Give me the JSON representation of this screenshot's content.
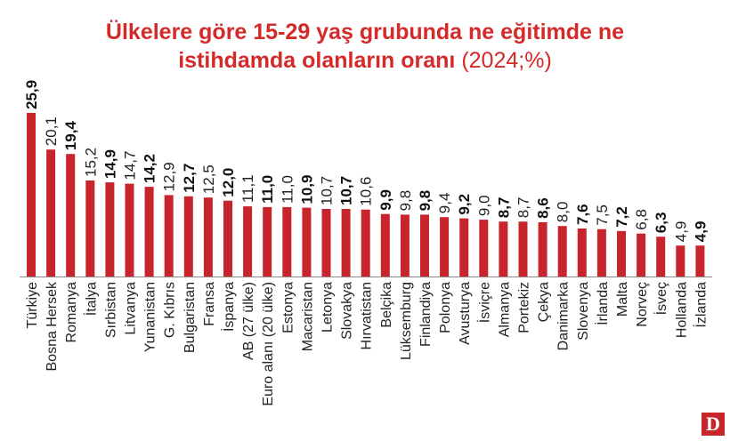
{
  "header": {
    "title_line1": "Ülkelere göre 15-29 yaş grubunda ne eğitimde ne",
    "title_line2": "istihdamda olanların oranı",
    "subtitle": "(2024;%)"
  },
  "logo": {
    "text": "D"
  },
  "colors": {
    "bar": "#c8242b",
    "title": "#d42a2a",
    "logo_bg": "#c7262b"
  },
  "chart_data": {
    "type": "bar",
    "categories": [
      "Türkiye",
      "Bosna Hersek",
      "Romanya",
      "İtalya",
      "Sırbistan",
      "Litvanya",
      "Yunanistan",
      "G. Kıbrıs",
      "Bulgaristan",
      "Fransa",
      "İspanya",
      "AB (27 ülke)",
      "Euro alanı (20 ülke)",
      "Estonya",
      "Macaristan",
      "Letonya",
      "Slovakya",
      "Hırvatistan",
      "Belçika",
      "Lüksemburg",
      "Finlandiya",
      "Polonya",
      "Avusturya",
      "İsviçre",
      "Almanya",
      "Portekiz",
      "Çekya",
      "Danimarka",
      "Slovenya",
      "İrlanda",
      "Malta",
      "Norveç",
      "İsveç",
      "Hollanda",
      "İzlanda"
    ],
    "values": [
      25.9,
      20.1,
      19.4,
      15.2,
      14.9,
      14.7,
      14.2,
      12.9,
      12.7,
      12.5,
      12.0,
      11.1,
      11.0,
      11.0,
      10.9,
      10.7,
      10.7,
      10.6,
      9.9,
      9.8,
      9.8,
      9.4,
      9.2,
      9.0,
      8.7,
      8.7,
      8.6,
      8.0,
      7.6,
      7.5,
      7.2,
      6.8,
      6.3,
      4.9,
      4.9
    ],
    "labels": [
      "25,9",
      "20,1",
      "19,4",
      "15,2",
      "14,9",
      "14,7",
      "14,2",
      "12,9",
      "12,7",
      "12,5",
      "12,0",
      "11,1",
      "11,0",
      "11,0",
      "10,9",
      "10,7",
      "10,7",
      "10,6",
      "9,9",
      "9,8",
      "9,8",
      "9,4",
      "9,2",
      "9,0",
      "8,7",
      "8,7",
      "8,6",
      "8,0",
      "7,6",
      "7,5",
      "7,2",
      "6,8",
      "6,3",
      "4,9",
      "4,9"
    ],
    "bold": [
      true,
      false,
      true,
      false,
      true,
      false,
      true,
      false,
      true,
      false,
      true,
      false,
      true,
      false,
      true,
      false,
      true,
      false,
      true,
      false,
      true,
      false,
      true,
      false,
      true,
      false,
      true,
      false,
      true,
      false,
      true,
      false,
      true,
      false,
      true
    ],
    "ylim": [
      0,
      26
    ],
    "grid": false,
    "legend": "none"
  }
}
